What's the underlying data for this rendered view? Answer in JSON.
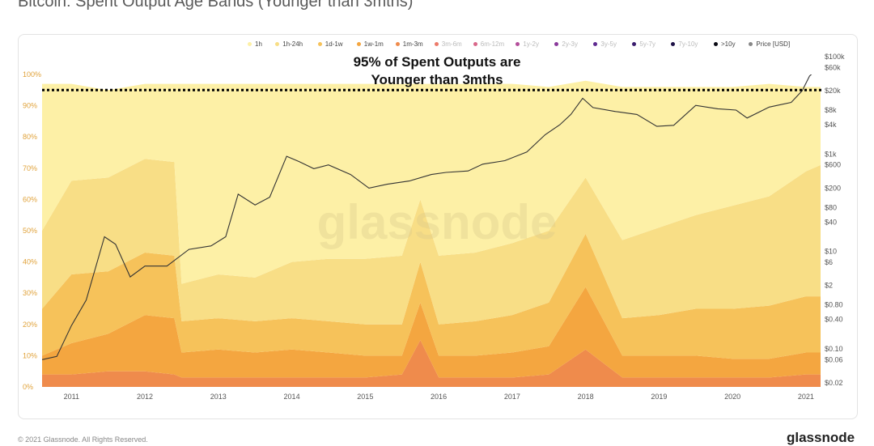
{
  "title": "Bitcoin: Spent Output Age Bands (Younger than 3mths)",
  "footer": {
    "copyright": "© 2021 Glassnode. All Rights Reserved.",
    "brand": "glassnode"
  },
  "watermark": "glassnode",
  "legend": [
    {
      "label": "1h",
      "color": "#fdf0a6"
    },
    {
      "label": "1h-24h",
      "color": "#f8de86"
    },
    {
      "label": "1d-1w",
      "color": "#f6c25a"
    },
    {
      "label": "1w-1m",
      "color": "#f4a640"
    },
    {
      "label": "1m-3m",
      "color": "#ef8b4c"
    },
    {
      "label": "3m-6m",
      "color": "#ec7a6a"
    },
    {
      "label": "6m-12m",
      "color": "#d9688a"
    },
    {
      "label": "1y-2y",
      "color": "#b44f9b"
    },
    {
      "label": "2y-3y",
      "color": "#8a3a9b"
    },
    {
      "label": "3y-5y",
      "color": "#5e2990"
    },
    {
      "label": "5y-7y",
      "color": "#3a1c6e"
    },
    {
      "label": "7y-10y",
      "color": "#1e1247"
    },
    {
      "label": ">10y",
      "color": "#0a0a14"
    },
    {
      "label": "Price [USD]",
      "color": "#888888"
    }
  ],
  "chart_data": {
    "type": "area",
    "stacking": "percent",
    "x": [
      "2010.6",
      "2011",
      "2011.5",
      "2012",
      "2012.4",
      "2012.5",
      "2013",
      "2013.5",
      "2014",
      "2014.5",
      "2015",
      "2015.5",
      "2015.75",
      "2016",
      "2016.5",
      "2017",
      "2017.5",
      "2018",
      "2018.5",
      "2019",
      "2019.5",
      "2020",
      "2020.5",
      "2021",
      "2021.2"
    ],
    "xtick_labels": [
      "2011",
      "2012",
      "2013",
      "2014",
      "2015",
      "2016",
      "2017",
      "2018",
      "2019",
      "2020",
      "2021"
    ],
    "xtick_years": [
      2011,
      2012,
      2013,
      2014,
      2015,
      2016,
      2017,
      2018,
      2019,
      2020,
      2021
    ],
    "series": [
      {
        "name": "1m-3m",
        "values": [
          4,
          4,
          5,
          5,
          4,
          3,
          3,
          3,
          3,
          3,
          3,
          4,
          15,
          3,
          3,
          3,
          4,
          12,
          3,
          3,
          3,
          3,
          3,
          4,
          4
        ]
      },
      {
        "name": "1w-1m",
        "values": [
          6,
          10,
          12,
          18,
          18,
          8,
          9,
          8,
          9,
          8,
          7,
          6,
          12,
          7,
          7,
          8,
          9,
          20,
          7,
          7,
          7,
          6,
          6,
          7,
          7
        ]
      },
      {
        "name": "1d-1w",
        "values": [
          15,
          22,
          20,
          20,
          20,
          10,
          10,
          10,
          10,
          10,
          10,
          10,
          13,
          10,
          11,
          12,
          14,
          17,
          12,
          13,
          15,
          16,
          17,
          18,
          18
        ]
      },
      {
        "name": "1h-24h",
        "values": [
          25,
          30,
          30,
          30,
          30,
          12,
          14,
          14,
          18,
          20,
          21,
          22,
          20,
          22,
          22,
          23,
          23,
          18,
          25,
          28,
          30,
          33,
          35,
          40,
          42
        ]
      },
      {
        "name": "1h",
        "values": [
          47,
          31,
          28,
          24,
          25,
          64,
          61,
          62,
          57,
          56,
          56,
          55,
          37,
          55,
          54,
          51,
          46,
          31,
          49,
          45,
          41,
          38,
          36,
          27,
          25
        ]
      }
    ],
    "y_ticks": [
      "0%",
      "10%",
      "20%",
      "30%",
      "40%",
      "50%",
      "60%",
      "70%",
      "80%",
      "90%",
      "100%"
    ],
    "ylim": [
      0,
      100
    ],
    "price": {
      "name": "Price [USD]",
      "scale": "log",
      "x": [
        2010.6,
        2010.8,
        2011.0,
        2011.2,
        2011.45,
        2011.6,
        2011.8,
        2012.0,
        2012.3,
        2012.6,
        2012.9,
        2013.1,
        2013.27,
        2013.5,
        2013.7,
        2013.93,
        2014.1,
        2014.3,
        2014.5,
        2014.8,
        2015.05,
        2015.3,
        2015.6,
        2015.9,
        2016.1,
        2016.4,
        2016.6,
        2016.9,
        2017.2,
        2017.45,
        2017.65,
        2017.8,
        2017.96,
        2018.1,
        2018.4,
        2018.7,
        2018.97,
        2019.2,
        2019.5,
        2019.8,
        2020.05,
        2020.2,
        2020.5,
        2020.8,
        2020.95,
        2021.05,
        2021.15
      ],
      "values": [
        0.06,
        0.07,
        0.3,
        1,
        20,
        14,
        3,
        5,
        5,
        11,
        13,
        20,
        150,
        90,
        130,
        900,
        700,
        500,
        600,
        380,
        200,
        240,
        280,
        380,
        420,
        450,
        620,
        730,
        1100,
        2500,
        4000,
        6500,
        14000,
        9000,
        7500,
        6500,
        3700,
        3900,
        10000,
        8500,
        8000,
        5500,
        9200,
        11500,
        20000,
        40000,
        55000
      ],
      "y_ticks": [
        "$100k",
        "$60k",
        "$20k",
        "$8k",
        "$4k",
        "$1k",
        "$600",
        "$200",
        "$80",
        "$40",
        "$10",
        "$6",
        "$2",
        "$0.80",
        "$0.40",
        "$0.10",
        "$0.06",
        "$0.02"
      ],
      "y_tick_values": [
        100000,
        60000,
        20000,
        8000,
        4000,
        1000,
        600,
        200,
        80,
        40,
        10,
        6,
        2,
        0.8,
        0.4,
        0.1,
        0.06,
        0.02
      ]
    },
    "reference_line": {
      "value": 95,
      "style": "dotted"
    },
    "annotation": {
      "line1": "95% of Spent Outputs are",
      "line2": "Younger than 3mths"
    },
    "grid": false,
    "legend_position": "top-right"
  }
}
